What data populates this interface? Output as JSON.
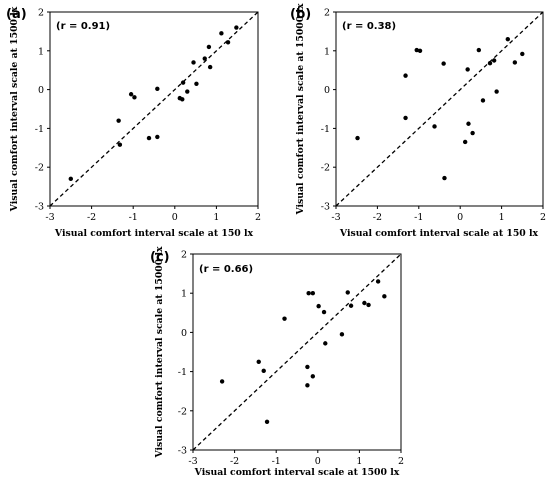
{
  "chart_data": [
    {
      "type": "scatter",
      "panel_label": "(a)",
      "annotation": "(r = 0.91)",
      "xlabel": "Visual comfort interval scale at 150 lx",
      "ylabel": "Visual comfort interval scale at 1500 lx",
      "xlim": [
        -3,
        2
      ],
      "ylim": [
        -3,
        2
      ],
      "xticks": [
        "-3",
        "-2",
        "-1",
        "0",
        "1",
        "2"
      ],
      "yticks": [
        "-3",
        "-2",
        "-1",
        "0",
        "1",
        "2"
      ],
      "reference_line": "y = x (dashed)",
      "points": [
        [
          -2.5,
          -2.3
        ],
        [
          -1.35,
          -0.8
        ],
        [
          -1.32,
          -1.42
        ],
        [
          -1.05,
          -0.12
        ],
        [
          -0.97,
          -0.2
        ],
        [
          -0.62,
          -1.25
        ],
        [
          -0.42,
          0.02
        ],
        [
          -0.42,
          -1.22
        ],
        [
          0.12,
          -0.22
        ],
        [
          0.18,
          -0.25
        ],
        [
          0.2,
          0.18
        ],
        [
          0.3,
          -0.05
        ],
        [
          0.45,
          0.7
        ],
        [
          0.52,
          0.15
        ],
        [
          0.72,
          0.8
        ],
        [
          0.82,
          1.1
        ],
        [
          0.85,
          0.58
        ],
        [
          1.12,
          1.45
        ],
        [
          1.28,
          1.22
        ],
        [
          1.48,
          1.6
        ]
      ]
    },
    {
      "type": "scatter",
      "panel_label": "(b)",
      "annotation": "(r = 0.38)",
      "xlabel": "Visual comfort interval scale at 150 lx",
      "ylabel": "Visual comfort interval scale at 15000 lx",
      "xlim": [
        -3,
        2
      ],
      "ylim": [
        -3,
        2
      ],
      "xticks": [
        "-3",
        "-2",
        "-1",
        "0",
        "1",
        "2"
      ],
      "yticks": [
        "-3",
        "-2",
        "-1",
        "0",
        "1",
        "2"
      ],
      "reference_line": "y = x (dashed)",
      "points": [
        [
          -2.48,
          -1.25
        ],
        [
          -1.32,
          0.36
        ],
        [
          -1.32,
          -0.73
        ],
        [
          -1.05,
          1.02
        ],
        [
          -0.97,
          1.0
        ],
        [
          -0.62,
          -0.95
        ],
        [
          -0.4,
          0.67
        ],
        [
          -0.38,
          -2.28
        ],
        [
          0.12,
          -1.35
        ],
        [
          0.18,
          0.52
        ],
        [
          0.2,
          -0.88
        ],
        [
          0.3,
          -1.12
        ],
        [
          0.45,
          1.02
        ],
        [
          0.55,
          -0.28
        ],
        [
          0.72,
          0.68
        ],
        [
          0.82,
          0.75
        ],
        [
          0.88,
          -0.05
        ],
        [
          1.15,
          1.3
        ],
        [
          1.32,
          0.7
        ],
        [
          1.5,
          0.92
        ]
      ]
    },
    {
      "type": "scatter",
      "panel_label": "(c)",
      "annotation": "(r = 0.66)",
      "xlabel": "Visual comfort interval scale at 1500 lx",
      "ylabel": "Visual comfort interval scale at 15000 lx",
      "xlim": [
        -3,
        2
      ],
      "ylim": [
        -3,
        2
      ],
      "xticks": [
        "-3",
        "-2",
        "-1",
        "0",
        "1",
        "2"
      ],
      "yticks": [
        "-3",
        "-2",
        "-1",
        "0",
        "1",
        "2"
      ],
      "reference_line": "y = x (dashed)",
      "points": [
        [
          -2.3,
          -1.25
        ],
        [
          -1.42,
          -0.75
        ],
        [
          -1.3,
          -0.98
        ],
        [
          -1.22,
          -2.28
        ],
        [
          -0.8,
          0.35
        ],
        [
          -0.25,
          -0.88
        ],
        [
          -0.25,
          -1.35
        ],
        [
          -0.22,
          1.0
        ],
        [
          -0.12,
          1.0
        ],
        [
          -0.12,
          -1.12
        ],
        [
          0.02,
          0.67
        ],
        [
          0.18,
          -0.28
        ],
        [
          0.15,
          0.52
        ],
        [
          0.58,
          -0.05
        ],
        [
          0.72,
          1.02
        ],
        [
          0.8,
          0.68
        ],
        [
          1.12,
          0.75
        ],
        [
          1.22,
          0.7
        ],
        [
          1.45,
          1.3
        ],
        [
          1.6,
          0.92
        ]
      ]
    }
  ]
}
